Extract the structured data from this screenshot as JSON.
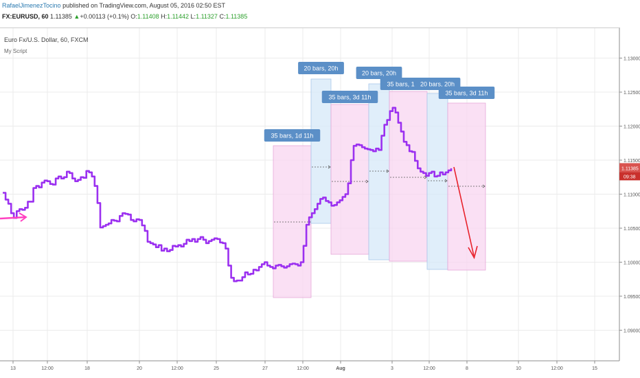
{
  "header": {
    "author": "RafaelJimenezTocino",
    "published": "published on TradingView.com, August 05, 2016 02:50 EST",
    "symbol": "FX:EURUSD, 60",
    "price": "1.11385",
    "change": "+0.00113 (+0.1%)",
    "o_label": "O:",
    "o": "1.11408",
    "h_label": "H:",
    "h": "1.11442",
    "l_label": "L:",
    "l": "1.11327",
    "c_label": "C:",
    "c": "1.11385"
  },
  "chart_data": {
    "type": "line",
    "title": "Euro Fx/U.S. Dollar, 60, FXCM",
    "subtitle": "My Script",
    "ylim": [
      1.0855,
      1.1345
    ],
    "y_ticks": [
      1.13,
      1.125,
      1.12,
      1.115,
      1.11,
      1.105,
      1.1,
      1.095,
      1.09
    ],
    "y_tick_labels": [
      "1.13000",
      "1.12500",
      "1.12000",
      "1.11500",
      "1.11000",
      "1.10500",
      "1.10000",
      "1.09500",
      "1.09000"
    ],
    "x_tick_labels": [
      "13",
      "12:00",
      "18",
      "20",
      "12:00",
      "25",
      "27",
      "12:00",
      "Aug",
      "3",
      "12:00",
      "8",
      "10",
      "12:00",
      "15"
    ],
    "last_price_label": "1.11385",
    "countdown_label": "09:38",
    "colors": {
      "price_line": "#9b30f0",
      "pink_zone": "#f8d6f0",
      "blue_zone": "#d6e8f8",
      "label_bg": "#5b8fc7",
      "arrow": "#e8202a",
      "magenta": "#ff40c0"
    },
    "series": [
      {
        "values": [
          1.1102,
          1.1092,
          1.1086,
          1.1072,
          1.1065,
          1.1075,
          1.1078,
          1.1077,
          1.108,
          1.1089,
          1.1089,
          1.1109,
          1.1112,
          1.111,
          1.1117,
          1.112,
          1.1119,
          1.1115,
          1.1114,
          1.1123,
          1.1126,
          1.1123,
          1.1125,
          1.1133,
          1.1131,
          1.1123,
          1.1119,
          1.1121,
          1.1125,
          1.1124,
          1.1134,
          1.1132,
          1.1126,
          1.1112,
          1.1087,
          1.1051,
          1.1053,
          1.1055,
          1.1057,
          1.1062,
          1.1061,
          1.106,
          1.1068,
          1.1072,
          1.1071,
          1.107,
          1.1062,
          1.106,
          1.1063,
          1.1062,
          1.1054,
          1.1046,
          1.103,
          1.1028,
          1.1026,
          1.1022,
          1.1025,
          1.1017,
          1.102,
          1.1016,
          1.1018,
          1.1024,
          1.1023,
          1.1025,
          1.1023,
          1.1027,
          1.1033,
          1.1031,
          1.1034,
          1.103,
          1.1034,
          1.1037,
          1.1033,
          1.1028,
          1.1031,
          1.1033,
          1.1035,
          1.1034,
          1.1029,
          1.1028,
          1.102,
          1.0995,
          1.0977,
          1.0972,
          1.0973,
          1.0973,
          1.0978,
          1.0985,
          1.0982,
          1.0983,
          1.0989,
          1.0988,
          1.0993,
          1.0997,
          1.1,
          1.0995,
          1.0993,
          1.0991,
          1.0995,
          1.0996,
          1.0994,
          1.0992,
          1.0994,
          1.0997,
          1.0998,
          1.0997,
          1.0995,
          1.1,
          1.1024,
          1.1055,
          1.1066,
          1.1072,
          1.1078,
          1.1086,
          1.1093,
          1.1095,
          1.109,
          1.1088,
          1.1083,
          1.1084,
          1.1088,
          1.1091,
          1.1096,
          1.11,
          1.1116,
          1.115,
          1.1171,
          1.1173,
          1.1172,
          1.1169,
          1.1167,
          1.1166,
          1.1165,
          1.1163,
          1.1167,
          1.1165,
          1.1186,
          1.1202,
          1.1209,
          1.1222,
          1.1227,
          1.122,
          1.1205,
          1.1192,
          1.1177,
          1.1172,
          1.1163,
          1.1162,
          1.1149,
          1.1138,
          1.1133,
          1.1131,
          1.1127,
          1.1131,
          1.1133,
          1.1126,
          1.1127,
          1.1132,
          1.1129,
          1.1132,
          1.1135,
          1.1138
        ]
      }
    ],
    "zones": [
      {
        "label": "35 bars, 1d 11h",
        "color": "pink"
      },
      {
        "label": "20 bars, 20h",
        "color": "blue"
      },
      {
        "label": "35 bars, 3d 11h",
        "color": "pink"
      },
      {
        "label": "20 bars, 20h",
        "color": "blue"
      },
      {
        "label": "35 bars, 1d 11h",
        "color": "pink"
      },
      {
        "label": "20 bars, 20h",
        "color": "blue"
      },
      {
        "label": "35 bars, 3d 11h",
        "color": "pink"
      }
    ]
  }
}
